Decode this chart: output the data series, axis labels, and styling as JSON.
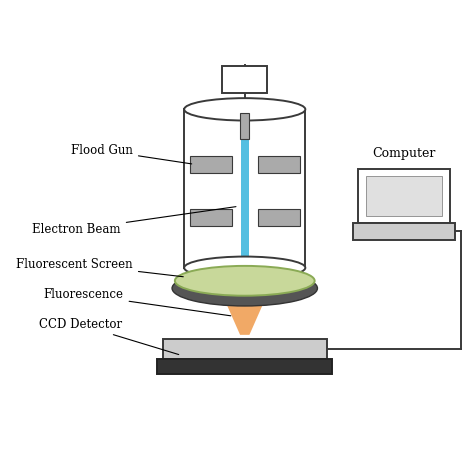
{
  "bg_color": "#ffffff",
  "line_color": "#3a3a3a",
  "gray_color": "#aaaaaa",
  "light_gray": "#cccccc",
  "blue_beam": "#4bbce0",
  "green_screen": "#c8d89a",
  "green_dark": "#8aaa55",
  "orange_fluor": "#f0a055",
  "labels": {
    "flood_gun": "Flood Gun",
    "electron_beam": "Electron Beam",
    "fluorescent_screen": "Fluorescent Screen",
    "fluorescence": "Fluorescence",
    "ccd_detector": "CCD Detector",
    "computer": "Computer"
  }
}
